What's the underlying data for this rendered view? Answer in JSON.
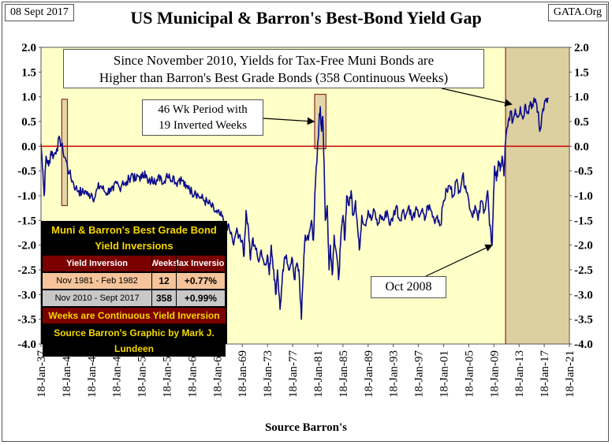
{
  "header": {
    "date": "08 Sept 2017",
    "source": "GATA.Org"
  },
  "chart_data": {
    "type": "line",
    "title": "US Municipal & Barron's Best-Bond Yield Gap",
    "xlabel": "Source Barron's",
    "ylabel": "",
    "ylim": [
      -4.0,
      2.0
    ],
    "xlim": [
      "1937-01-18",
      "2021-01-18"
    ],
    "y_ticks": [
      "2.0",
      "1.5",
      "1.0",
      "0.5",
      "0.0",
      "-0.5",
      "-1.0",
      "-1.5",
      "-2.0",
      "-2.5",
      "-3.0",
      "-3.5",
      "-4.0"
    ],
    "x_ticks": [
      "18-Jan-37",
      "18-Jan-41",
      "18-Jan-45",
      "18-Jan-49",
      "18-Jan-53",
      "18-Jan-57",
      "18-Jan-61",
      "18-Jan-65",
      "18-Jan-69",
      "18-Jan-73",
      "18-Jan-77",
      "18-Jan-81",
      "18-Jan-85",
      "18-Jan-89",
      "18-Jan-93",
      "18-Jan-97",
      "18-Jan-01",
      "18-Jan-05",
      "18-Jan-09",
      "18-Jan-13",
      "18-Jan-17",
      "18-Jan-21"
    ],
    "zero_line_color": "#cc0000",
    "series_color": "#0a0a8c",
    "plot_bg": "#ffffc8",
    "shade_color": "#ddd0a0",
    "series": [
      {
        "points": [
          [
            1937.0,
            0.05
          ],
          [
            1937.3,
            -0.5
          ],
          [
            1937.5,
            -1.0
          ],
          [
            1937.8,
            -0.2
          ],
          [
            1938.2,
            -0.4
          ],
          [
            1938.6,
            -0.1
          ],
          [
            1939.0,
            -0.2
          ],
          [
            1939.5,
            -0.05
          ],
          [
            1940.0,
            0.15
          ],
          [
            1940.5,
            -0.1
          ],
          [
            1941.0,
            -0.3
          ],
          [
            1941.5,
            -0.55
          ],
          [
            1942.0,
            -0.7
          ],
          [
            1942.5,
            -0.85
          ],
          [
            1943.0,
            -0.9
          ],
          [
            1943.5,
            -0.95
          ],
          [
            1944.0,
            -0.9
          ],
          [
            1944.5,
            -1.0
          ],
          [
            1945.0,
            -0.95
          ],
          [
            1945.5,
            -1.05
          ],
          [
            1946.0,
            -0.85
          ],
          [
            1946.5,
            -0.8
          ],
          [
            1947.0,
            -0.9
          ],
          [
            1947.5,
            -0.95
          ],
          [
            1948.0,
            -0.85
          ],
          [
            1948.5,
            -0.9
          ],
          [
            1949.0,
            -0.75
          ],
          [
            1949.5,
            -0.85
          ],
          [
            1950.0,
            -0.7
          ],
          [
            1950.5,
            -0.8
          ],
          [
            1951.0,
            -0.65
          ],
          [
            1951.5,
            -0.55
          ],
          [
            1952.0,
            -0.7
          ],
          [
            1952.5,
            -0.6
          ],
          [
            1953.0,
            -0.65
          ],
          [
            1953.5,
            -0.5
          ],
          [
            1954.0,
            -0.75
          ],
          [
            1954.5,
            -0.7
          ],
          [
            1955.0,
            -0.65
          ],
          [
            1955.5,
            -0.7
          ],
          [
            1956.0,
            -0.6
          ],
          [
            1956.5,
            -0.75
          ],
          [
            1957.0,
            -0.55
          ],
          [
            1957.5,
            -0.65
          ],
          [
            1958.0,
            -0.6
          ],
          [
            1958.5,
            -0.75
          ],
          [
            1959.0,
            -0.65
          ],
          [
            1959.5,
            -0.7
          ],
          [
            1960.0,
            -0.85
          ],
          [
            1960.5,
            -0.8
          ],
          [
            1961.0,
            -0.95
          ],
          [
            1961.5,
            -0.9
          ],
          [
            1962.0,
            -1.0
          ],
          [
            1962.5,
            -1.05
          ],
          [
            1963.0,
            -1.1
          ],
          [
            1963.5,
            -1.15
          ],
          [
            1964.0,
            -1.2
          ],
          [
            1964.5,
            -1.3
          ],
          [
            1965.0,
            -1.35
          ],
          [
            1965.5,
            -1.4
          ],
          [
            1966.0,
            -1.5
          ],
          [
            1966.3,
            -1.9
          ],
          [
            1966.7,
            -1.6
          ],
          [
            1967.0,
            -1.7
          ],
          [
            1967.5,
            -1.95
          ],
          [
            1968.0,
            -1.75
          ],
          [
            1968.5,
            -1.8
          ],
          [
            1969.0,
            -1.9
          ],
          [
            1969.3,
            -2.2
          ],
          [
            1969.6,
            -1.3
          ],
          [
            1970.0,
            -1.7
          ],
          [
            1970.3,
            -2.3
          ],
          [
            1970.6,
            -1.9
          ],
          [
            1971.0,
            -2.0
          ],
          [
            1971.5,
            -2.3
          ],
          [
            1972.0,
            -2.1
          ],
          [
            1972.5,
            -2.4
          ],
          [
            1973.0,
            -2.2
          ],
          [
            1973.3,
            -2.6
          ],
          [
            1973.6,
            -2.0
          ],
          [
            1974.0,
            -2.5
          ],
          [
            1974.3,
            -3.0
          ],
          [
            1974.6,
            -2.5
          ],
          [
            1975.0,
            -3.3
          ],
          [
            1975.3,
            -2.8
          ],
          [
            1975.6,
            -2.4
          ],
          [
            1976.0,
            -2.2
          ],
          [
            1976.5,
            -2.5
          ],
          [
            1977.0,
            -2.3
          ],
          [
            1977.3,
            -2.7
          ],
          [
            1977.6,
            -2.4
          ],
          [
            1978.0,
            -2.5
          ],
          [
            1978.4,
            -3.5
          ],
          [
            1978.8,
            -2.2
          ],
          [
            1979.0,
            -1.8
          ],
          [
            1979.5,
            -1.9
          ],
          [
            1980.0,
            -1.5
          ],
          [
            1980.3,
            -1.9
          ],
          [
            1980.6,
            -0.8
          ],
          [
            1980.9,
            -0.2
          ],
          [
            1981.2,
            0.5
          ],
          [
            1981.4,
            0.8
          ],
          [
            1981.6,
            0.3
          ],
          [
            1981.8,
            0.6
          ],
          [
            1982.0,
            -0.3
          ],
          [
            1982.2,
            -1.5
          ],
          [
            1982.5,
            -1.2
          ],
          [
            1982.8,
            -2.5
          ],
          [
            1983.0,
            -2.0
          ],
          [
            1983.3,
            -2.6
          ],
          [
            1983.6,
            -1.8
          ],
          [
            1984.0,
            -2.2
          ],
          [
            1984.3,
            -2.7
          ],
          [
            1984.6,
            -2.0
          ],
          [
            1985.0,
            -1.4
          ],
          [
            1985.3,
            -1.9
          ],
          [
            1985.6,
            -1.0
          ],
          [
            1986.0,
            -1.2
          ],
          [
            1986.3,
            -0.9
          ],
          [
            1986.6,
            -1.4
          ],
          [
            1987.0,
            -1.1
          ],
          [
            1987.3,
            -1.6
          ],
          [
            1987.6,
            -2.1
          ],
          [
            1988.0,
            -1.4
          ],
          [
            1988.5,
            -1.6
          ],
          [
            1989.0,
            -1.3
          ],
          [
            1989.5,
            -1.5
          ],
          [
            1990.0,
            -1.3
          ],
          [
            1990.5,
            -1.6
          ],
          [
            1991.0,
            -1.4
          ],
          [
            1991.5,
            -1.5
          ],
          [
            1992.0,
            -1.3
          ],
          [
            1992.5,
            -1.6
          ],
          [
            1993.0,
            -1.4
          ],
          [
            1993.5,
            -1.2
          ],
          [
            1994.0,
            -1.5
          ],
          [
            1994.5,
            -1.3
          ],
          [
            1995.0,
            -1.4
          ],
          [
            1995.5,
            -1.2
          ],
          [
            1996.0,
            -1.5
          ],
          [
            1996.5,
            -1.3
          ],
          [
            1997.0,
            -1.4
          ],
          [
            1997.5,
            -1.3
          ],
          [
            1998.0,
            -1.5
          ],
          [
            1998.5,
            -1.2
          ],
          [
            1999.0,
            -1.3
          ],
          [
            1999.5,
            -1.5
          ],
          [
            2000.0,
            -1.4
          ],
          [
            2000.5,
            -1.6
          ],
          [
            2001.0,
            -1.1
          ],
          [
            2001.5,
            -0.9
          ],
          [
            2002.0,
            -0.8
          ],
          [
            2002.5,
            -1.0
          ],
          [
            2003.0,
            -0.7
          ],
          [
            2003.5,
            -0.9
          ],
          [
            2004.0,
            -0.6
          ],
          [
            2004.5,
            -0.8
          ],
          [
            2005.0,
            -1.1
          ],
          [
            2005.5,
            -1.4
          ],
          [
            2006.0,
            -1.2
          ],
          [
            2006.5,
            -1.5
          ],
          [
            2007.0,
            -1.1
          ],
          [
            2007.5,
            -1.3
          ],
          [
            2008.0,
            -0.9
          ],
          [
            2008.3,
            -1.6
          ],
          [
            2008.7,
            -2.0
          ],
          [
            2008.9,
            -1.2
          ],
          [
            2009.1,
            -0.4
          ],
          [
            2009.4,
            -0.7
          ],
          [
            2009.7,
            -0.3
          ],
          [
            2010.0,
            -0.5
          ],
          [
            2010.3,
            -0.2
          ],
          [
            2010.6,
            -0.6
          ],
          [
            2010.85,
            0.1
          ],
          [
            2011.2,
            0.4
          ],
          [
            2011.6,
            0.7
          ],
          [
            2012.0,
            0.5
          ],
          [
            2012.4,
            0.75
          ],
          [
            2012.8,
            0.6
          ],
          [
            2013.2,
            0.8
          ],
          [
            2013.6,
            0.55
          ],
          [
            2014.0,
            0.85
          ],
          [
            2014.4,
            0.7
          ],
          [
            2014.8,
            0.9
          ],
          [
            2015.2,
            0.8
          ],
          [
            2015.6,
            0.95
          ],
          [
            2016.0,
            0.7
          ],
          [
            2016.3,
            0.3
          ],
          [
            2016.6,
            0.6
          ],
          [
            2017.0,
            0.85
          ],
          [
            2017.4,
            0.9
          ],
          [
            2017.7,
            0.97
          ]
        ]
      }
    ],
    "shaded_periods": [
      {
        "x": [
          1940.3,
          1941.2
        ],
        "y": [
          -1.2,
          0.95
        ]
      },
      {
        "x": [
          1980.5,
          1982.3
        ],
        "y": [
          -0.05,
          1.05
        ]
      },
      {
        "x": [
          2010.85,
          2021.0
        ],
        "y": [
          -4.0,
          2.0
        ]
      }
    ],
    "annotations": {
      "main_callout": [
        "Since November 2010, Yields for Tax-Free Muni Bonds  are",
        "Higher than Barron's Best Grade Bonds (358 Continuous Weeks)"
      ],
      "wk46_callout": [
        "46 Wk Period with",
        "19 Inverted Weeks"
      ],
      "oct2008_callout": "Oct 2008"
    },
    "inversion_table": {
      "title_line1": "Muni & Barron's Best Grade Bond",
      "title_line2": "Yield Inversions",
      "headers": [
        "Yield Inversion",
        "Weeks",
        "Max Inversion"
      ],
      "rows": [
        [
          "Nov 1981 - Feb 1982",
          "12",
          "+0.77%"
        ],
        [
          "Nov 2010 - Sept 2017",
          "358",
          "+0.99%"
        ]
      ],
      "footer1": "Weeks are Continuous Yield Inversion",
      "footer2": "Source Barron's Graphic by Mark J. Lundeen"
    }
  }
}
